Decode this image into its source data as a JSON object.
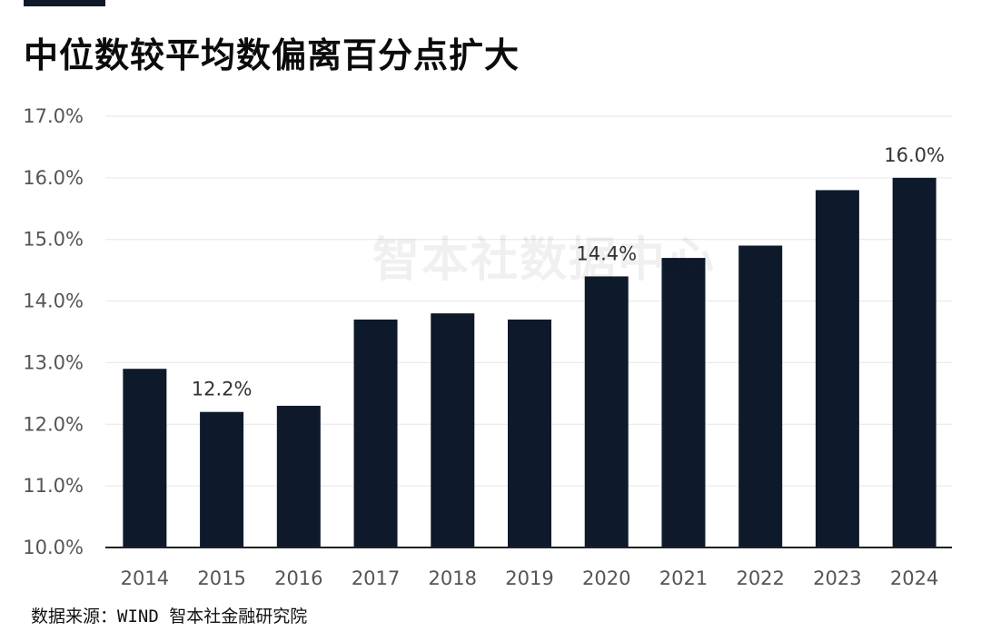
{
  "title": "中位数较平均数偏离百分点扩大",
  "watermark": "智本社数据中心",
  "source": "数据来源：WIND 智本社金融研究院",
  "colors": {
    "bar": "#0e1a2b",
    "grid": "#e6e6e6",
    "axis": "#222222"
  },
  "chart_data": {
    "type": "bar",
    "title": "中位数较平均数偏离百分点扩大",
    "xlabel": "",
    "ylabel": "",
    "categories": [
      "2014",
      "2015",
      "2016",
      "2017",
      "2018",
      "2019",
      "2020",
      "2021",
      "2022",
      "2023",
      "2024"
    ],
    "values": [
      12.9,
      12.2,
      12.3,
      13.7,
      13.8,
      13.7,
      14.4,
      14.7,
      14.9,
      15.8,
      16.0
    ],
    "ylim": [
      10,
      17
    ],
    "yticks": [
      10,
      11,
      12,
      13,
      14,
      15,
      16,
      17
    ],
    "ytick_labels": [
      "10.0%",
      "11.0%",
      "12.0%",
      "13.0%",
      "14.0%",
      "15.0%",
      "16.0%",
      "17.0%"
    ],
    "data_labels": [
      {
        "category": "2015",
        "text": "12.2%"
      },
      {
        "category": "2020",
        "text": "14.4%"
      },
      {
        "category": "2024",
        "text": "16.0%"
      }
    ],
    "grid": true,
    "legend": "none"
  }
}
